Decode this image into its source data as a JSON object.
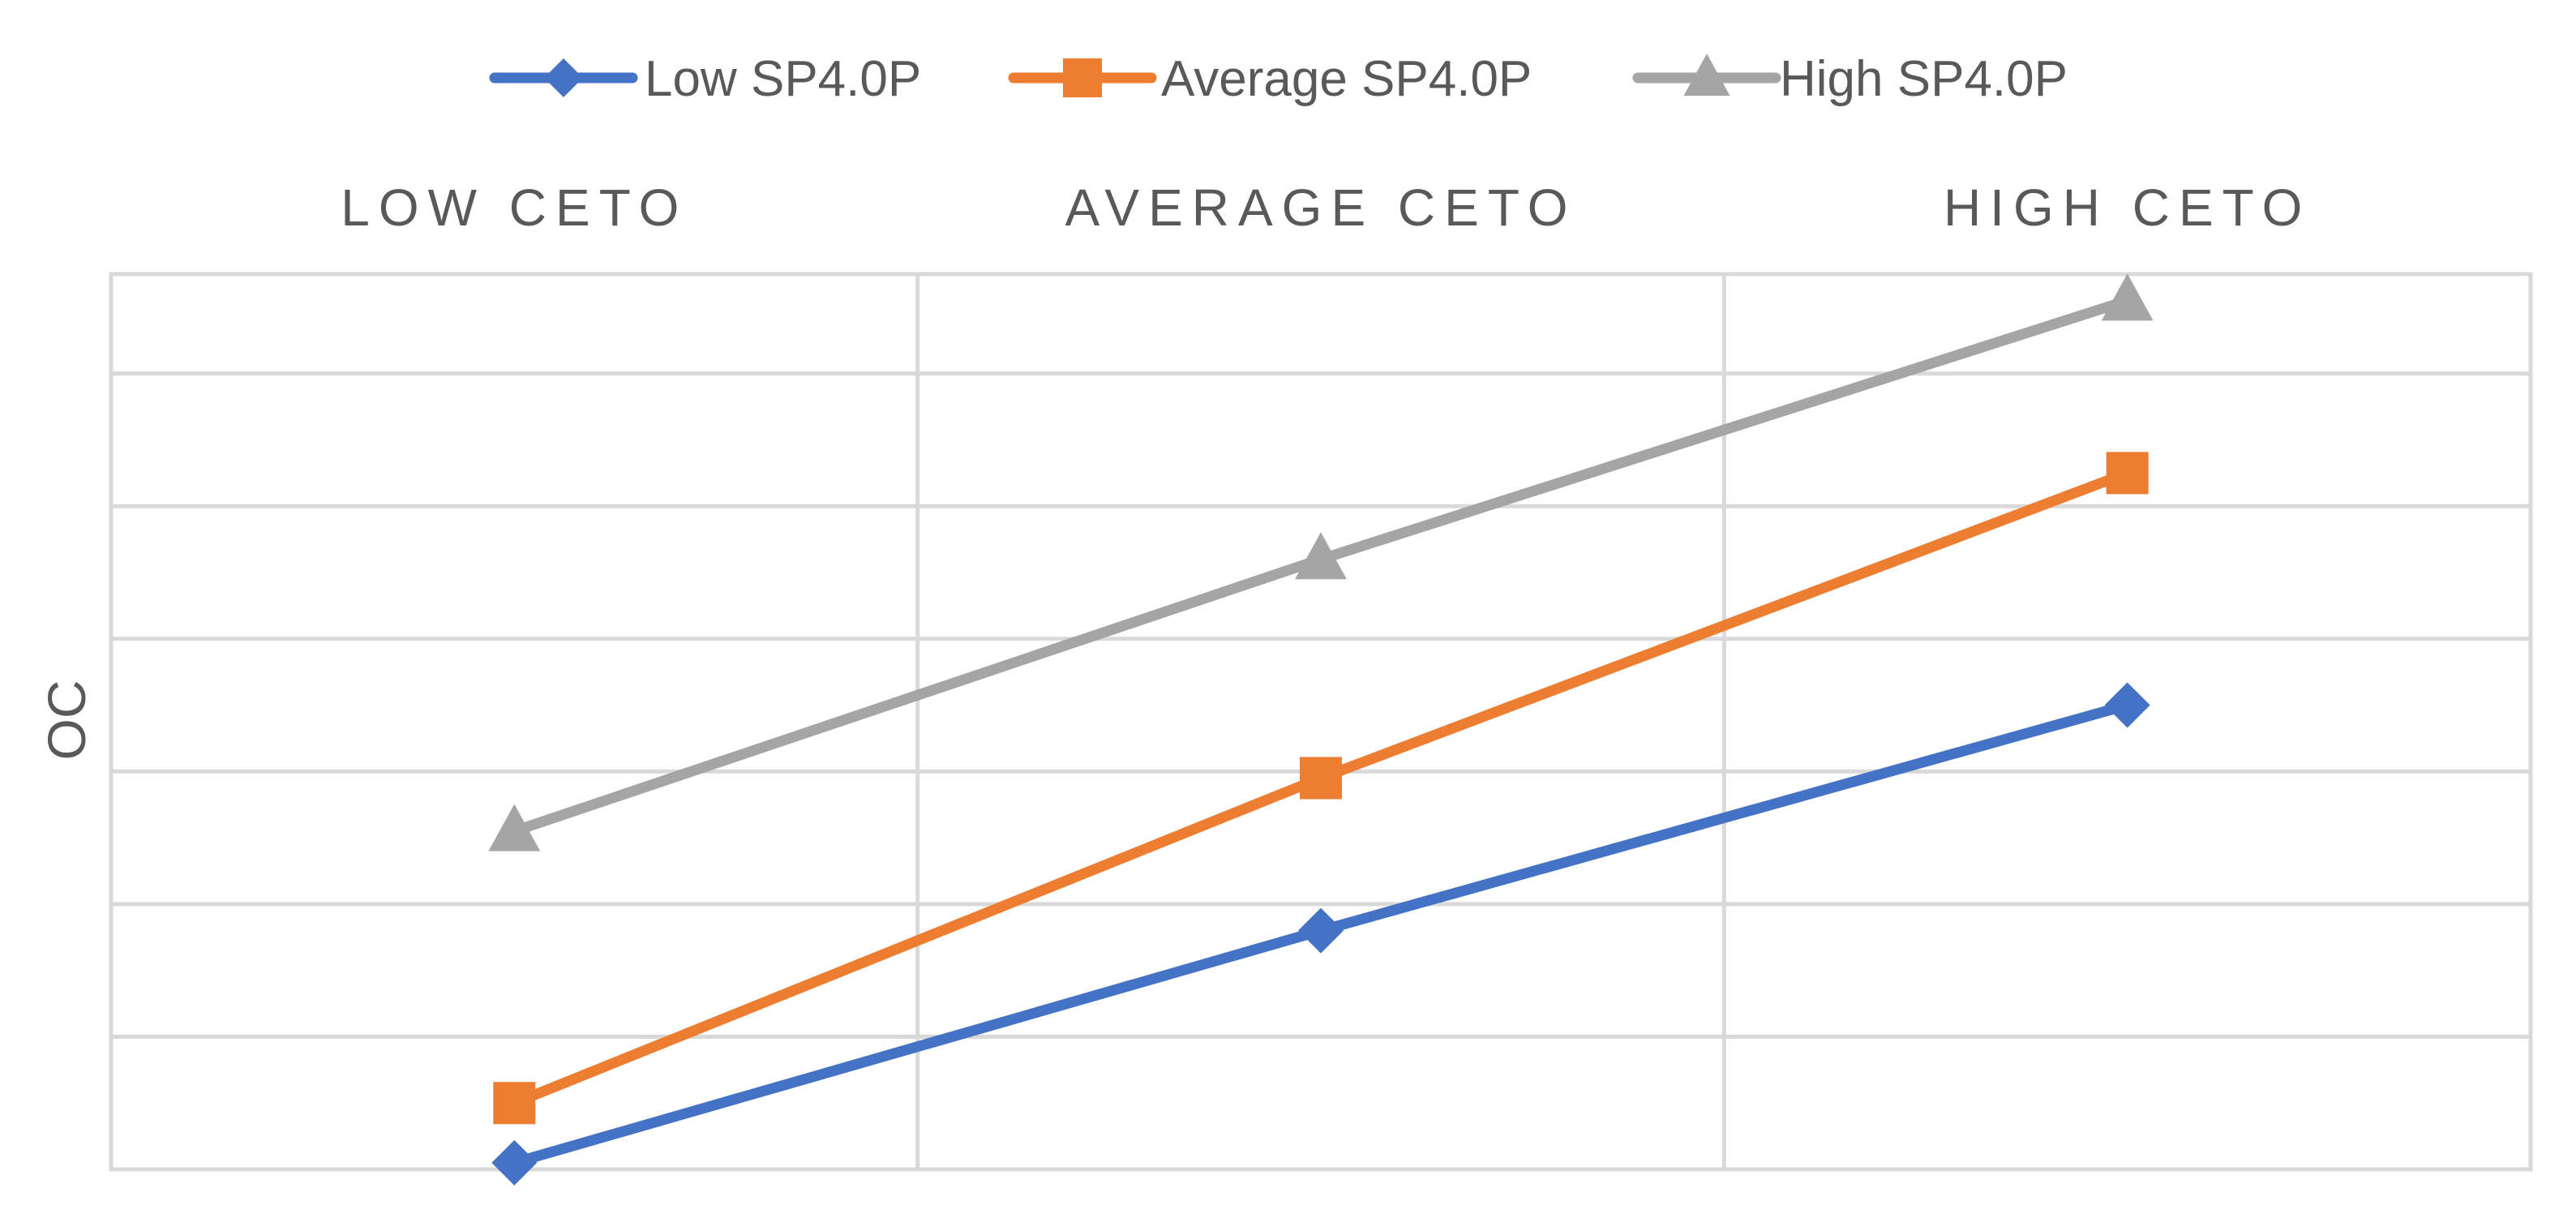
{
  "chart_data": {
    "type": "line",
    "title": "",
    "ylabel": "OC",
    "xlabel": "",
    "categories": [
      "LOW CETO",
      "AVERAGE CETO",
      "HIGH CETO"
    ],
    "ylim": [
      0,
      6.75
    ],
    "grid": true,
    "legend_position": "top",
    "series": [
      {
        "name": "Low SP4.0P",
        "color": "#4472C4",
        "marker": "diamond",
        "values": [
          0.05,
          1.8,
          3.5
        ]
      },
      {
        "name": "Average SP4.0P",
        "color": "#ED7D31",
        "marker": "square",
        "values": [
          0.5,
          2.95,
          5.25
        ]
      },
      {
        "name": "High SP4.0P",
        "color": "#A5A5A5",
        "marker": "triangle",
        "values": [
          2.55,
          4.6,
          6.55
        ]
      }
    ]
  }
}
